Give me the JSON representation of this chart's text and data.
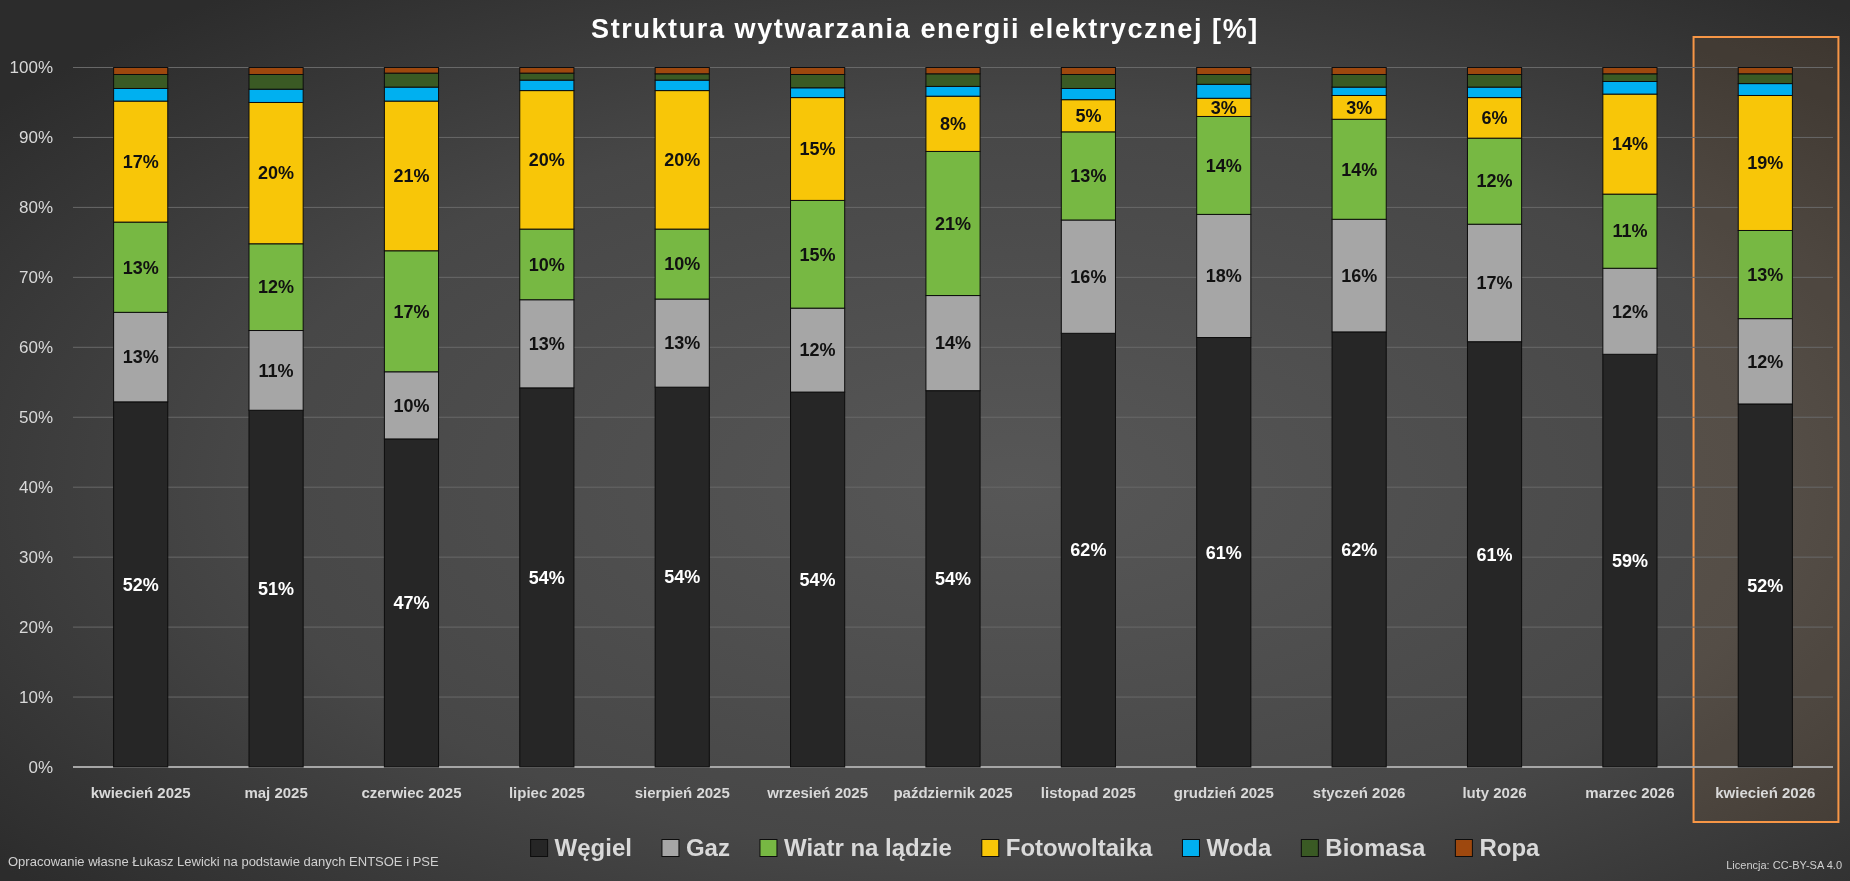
{
  "chart_data": {
    "type": "bar",
    "title": "Struktura wytwarzania energii elektrycznej [%]",
    "categories": [
      "kwiecień 2025",
      "maj 2025",
      "czerwiec 2025",
      "lipiec 2025",
      "sierpień 2025",
      "wrzesień 2025",
      "październik 2025",
      "listopad 2025",
      "grudzień 2025",
      "styczeń 2026",
      "luty 2026",
      "marzec 2026",
      "kwiecień 2026"
    ],
    "stacked": true,
    "series": [
      {
        "name": "Węgiel",
        "color": "#262626",
        "values": [
          52.2,
          51.0,
          46.9,
          54.2,
          54.3,
          53.6,
          53.8,
          62.0,
          61.4,
          62.2,
          60.8,
          59.0,
          51.9
        ],
        "value_labels": [
          "52%",
          "51%",
          "47%",
          "54%",
          "54%",
          "54%",
          "54%",
          "62%",
          "61%",
          "62%",
          "61%",
          "59%",
          "52%"
        ]
      },
      {
        "name": "Gaz",
        "color": "#a6a6a6",
        "values": [
          12.8,
          11.4,
          9.6,
          12.6,
          12.6,
          12.0,
          13.6,
          16.2,
          17.6,
          16.1,
          16.8,
          12.3,
          12.2
        ],
        "value_labels": [
          "13%",
          "11%",
          "10%",
          "13%",
          "13%",
          "12%",
          "14%",
          "16%",
          "18%",
          "16%",
          "17%",
          "12%",
          "12%"
        ]
      },
      {
        "name": "Wiatr na lądzie",
        "color": "#77b843",
        "values": [
          12.9,
          12.4,
          17.3,
          10.1,
          10.0,
          15.4,
          20.6,
          12.6,
          14.0,
          14.3,
          12.3,
          10.6,
          12.6
        ],
        "value_labels": [
          "13%",
          "12%",
          "17%",
          "10%",
          "10%",
          "15%",
          "21%",
          "13%",
          "14%",
          "14%",
          "12%",
          "11%",
          "13%"
        ]
      },
      {
        "name": "Fotowoltaika",
        "color": "#f8c608",
        "values": [
          17.3,
          20.2,
          21.4,
          19.8,
          19.8,
          14.7,
          7.9,
          4.6,
          2.6,
          3.4,
          5.8,
          14.3,
          19.3
        ],
        "value_labels": [
          "17%",
          "20%",
          "21%",
          "20%",
          "20%",
          "15%",
          "8%",
          "5%",
          "3%",
          "3%",
          "6%",
          "14%",
          "19%"
        ]
      },
      {
        "name": "Woda",
        "color": "#00b0f0",
        "values": [
          1.8,
          1.9,
          2.0,
          1.5,
          1.5,
          1.4,
          1.4,
          1.6,
          2.0,
          1.2,
          1.5,
          1.8,
          1.7
        ]
      },
      {
        "name": "Biomasa",
        "color": "#3a5a24",
        "values": [
          2.0,
          2.1,
          2.0,
          1.0,
          0.9,
          1.9,
          1.8,
          2.0,
          1.4,
          1.8,
          1.8,
          1.1,
          1.4
        ]
      },
      {
        "name": "Ropa",
        "color": "#9e480e",
        "values": [
          1.0,
          1.0,
          0.8,
          0.8,
          0.9,
          1.0,
          0.9,
          1.0,
          1.0,
          1.0,
          1.0,
          0.9,
          0.9
        ]
      }
    ],
    "ylim": [
      0,
      100
    ],
    "yticks": [
      {
        "value": 0,
        "label": "0%"
      },
      {
        "value": 10,
        "label": "10%"
      },
      {
        "value": 20,
        "label": "20%"
      },
      {
        "value": 30,
        "label": "30%"
      },
      {
        "value": 40,
        "label": "40%"
      },
      {
        "value": 50,
        "label": "50%"
      },
      {
        "value": 60,
        "label": "60%"
      },
      {
        "value": 70,
        "label": "70%"
      },
      {
        "value": 80,
        "label": "80%"
      },
      {
        "value": 90,
        "label": "90%"
      },
      {
        "value": 100,
        "label": "100%"
      }
    ],
    "grid": "y",
    "legend": "bottom",
    "bands": [
      {
        "axis": "x",
        "from": "kwiecień 2026",
        "to": "kwiecień 2026",
        "color": "#f79646"
      }
    ],
    "annotations": [
      "Opracowanie własne Łukasz Lewicki na podstawie danych ENTSOE i PSE",
      "Licencja: CC-BY-SA 4.0"
    ]
  }
}
